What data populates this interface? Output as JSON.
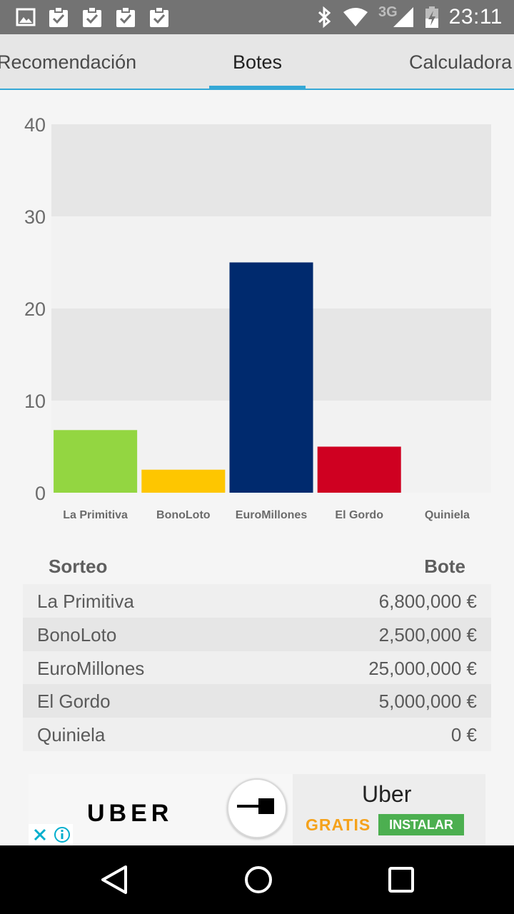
{
  "status_bar": {
    "time": "23:11",
    "network": "3G",
    "icons": [
      "image-icon",
      "clipboard-check-icon",
      "clipboard-check-icon",
      "clipboard-check-icon",
      "clipboard-check-icon",
      "bluetooth-icon",
      "wifi-icon",
      "signal-icon",
      "battery-charging-icon"
    ]
  },
  "tabs": [
    {
      "label": "Recomendación",
      "selected": false
    },
    {
      "label": "Botes",
      "selected": true
    },
    {
      "label": "Calculadora",
      "selected": false
    }
  ],
  "chart_data": {
    "type": "bar",
    "categories": [
      "La Primitiva",
      "BonoLoto",
      "EuroMillones",
      "El Gordo",
      "Quiniela"
    ],
    "values": [
      6.8,
      2.5,
      25,
      5,
      0
    ],
    "colors": [
      "#93d641",
      "#fec600",
      "#002a6e",
      "#cf0021",
      "#9e9e9e"
    ],
    "yticks": [
      "0",
      "10",
      "20",
      "30",
      "40"
    ],
    "ylim": [
      0,
      40
    ],
    "grid": "alternating bands",
    "legend": "none"
  },
  "table": {
    "headers": [
      "Sorteo",
      "Bote"
    ],
    "rows": [
      [
        "La Primitiva",
        "6,800,000 €"
      ],
      [
        "BonoLoto",
        "2,500,000 €"
      ],
      [
        "EuroMillones",
        "25,000,000 €"
      ],
      [
        "El Gordo",
        "5,000,000 €"
      ],
      [
        "Quiniela",
        "0 €"
      ]
    ]
  },
  "ad": {
    "logo": "UBER",
    "title": "Uber",
    "price": "GRATIS",
    "install_label": "INSTALAR",
    "install_color": "#4caf50",
    "price_color": "#f5a21b"
  },
  "nav": {
    "icons": [
      "back-icon",
      "home-icon",
      "recents-icon"
    ]
  }
}
